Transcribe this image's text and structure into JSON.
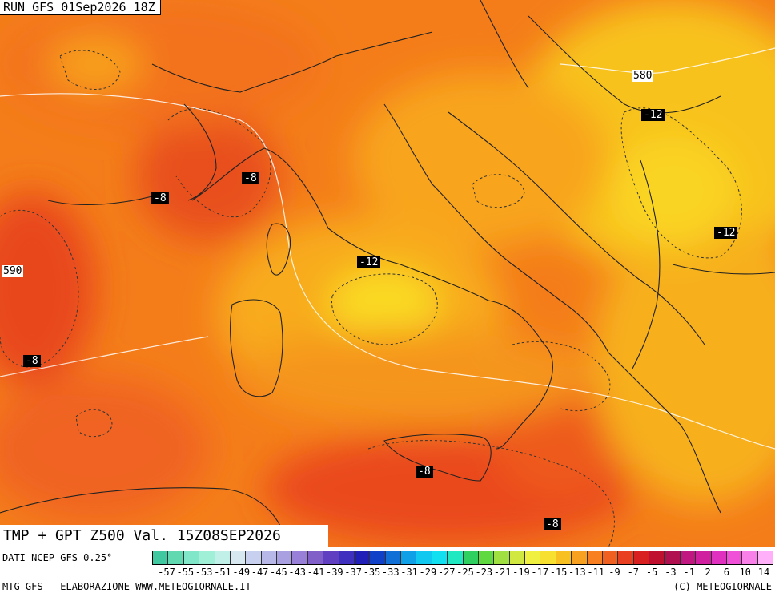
{
  "header": {
    "run_label": "RUN GFS 01Sep2026 18Z"
  },
  "validity": {
    "label": "TMP + GPT Z500 Val. 15Z08SEP2026"
  },
  "source": {
    "label": "DATI NCEP GFS 0.25°"
  },
  "footer": {
    "left": "MTG-GFS - ELABORAZIONE WWW.METEOGIORNALE.IT",
    "right": "(C) METEOGIORNALE"
  },
  "map_labels": {
    "gpt_580": "580",
    "gpt_590": "590",
    "tmp_m12_adriatic": "-12",
    "tmp_m12_rome": "-12",
    "tmp_m12_balkans": "-12",
    "tmp_m8_ligurian": "-8",
    "tmp_m8_france": "-8",
    "tmp_m8_algeria": "-8",
    "tmp_m8_sicily": "-8",
    "tmp_m8_ionian": "-8"
  },
  "legend": {
    "ticks": [
      "-57",
      "-55",
      "-53",
      "-51",
      "-49",
      "-47",
      "-45",
      "-43",
      "-41",
      "-39",
      "-37",
      "-35",
      "-33",
      "-31",
      "-29",
      "-27",
      "-25",
      "-23",
      "-21",
      "-19",
      "-17",
      "-15",
      "-13",
      "-11",
      "-9",
      "-7",
      "-5",
      "-3",
      "-1",
      "2",
      "6",
      "10",
      "14"
    ],
    "colors": [
      "#40c8a0",
      "#60d8b0",
      "#80e8c8",
      "#a0f0d8",
      "#c0f0e8",
      "#d8e8f0",
      "#c8d0f0",
      "#b8b8e8",
      "#a8a0e0",
      "#9880d8",
      "#8060c8",
      "#6040c0",
      "#4030c0",
      "#2020b8",
      "#1040c8",
      "#1070d8",
      "#10a0e8",
      "#10c8f0",
      "#10e0f0",
      "#20e8c0",
      "#30d060",
      "#60d840",
      "#a0e040",
      "#d0e840",
      "#f0f040",
      "#f8e030",
      "#f8c020",
      "#f8a020",
      "#f88020",
      "#f06020",
      "#e84020",
      "#d82020",
      "#c01030",
      "#b01050",
      "#c01880",
      "#d020a0",
      "#e030c0",
      "#f050d8",
      "#f880e8",
      "#ffb0f8"
    ]
  }
}
